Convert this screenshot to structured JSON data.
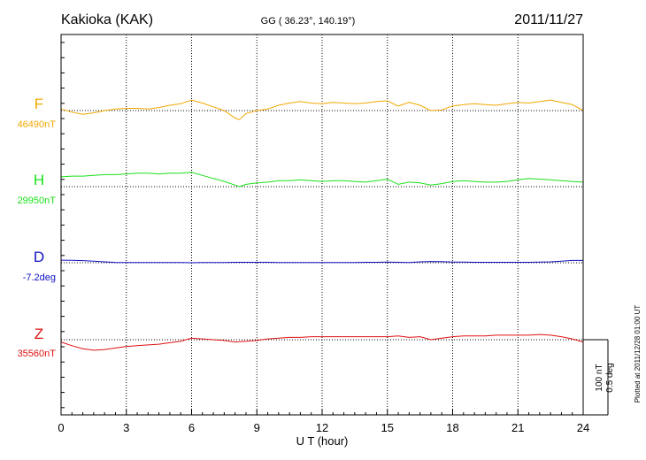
{
  "header": {
    "station": "Kakioka (KAK)",
    "coords": "GG ( 36.23°, 140.19°)",
    "date": "2011/11/27"
  },
  "footer_note": "Plotted at 2011/12/28 01:00 UT",
  "scale_bar": {
    "label1": "100 nT",
    "label2": "0.5 deg"
  },
  "colors": {
    "F": "#f0a800",
    "H": "#18e018",
    "D": "#1010c0",
    "Z": "#e01010",
    "axis": "#000000"
  },
  "chart_data": {
    "type": "line",
    "xlabel": "U T (hour)",
    "xlim": [
      0,
      24
    ],
    "xticks": [
      "0",
      "3",
      "6",
      "9",
      "12",
      "15",
      "18",
      "21",
      "24"
    ],
    "scale_nT": 100,
    "scale_deg": 0.5,
    "series": [
      {
        "name": "F",
        "baseline_label": "46490nT",
        "baseline": 46490,
        "unit": "nT",
        "color": "#f0a800",
        "x": [
          0,
          0.5,
          1,
          1.5,
          2,
          2.5,
          3,
          3.5,
          4,
          4.5,
          5,
          5.5,
          6,
          6.5,
          7,
          7.5,
          8,
          8.2,
          8.5,
          9,
          9.5,
          10,
          10.5,
          11,
          11.5,
          12,
          12.5,
          13,
          13.5,
          14,
          14.5,
          15,
          15.5,
          16,
          16.5,
          17,
          17.5,
          18,
          18.5,
          19,
          19.5,
          20,
          20.5,
          21,
          21.5,
          22,
          22.5,
          23,
          23.5,
          24
        ],
        "y": [
          46492,
          46488,
          46485,
          46487,
          46490,
          46492,
          46493,
          46493,
          46492,
          46494,
          46497,
          46499,
          46504,
          46500,
          46495,
          46490,
          46480,
          46478,
          46486,
          46490,
          46492,
          46497,
          46500,
          46502,
          46500,
          46499,
          46501,
          46500,
          46499,
          46500,
          46502,
          46503,
          46496,
          46501,
          46497,
          46490,
          46491,
          46496,
          46498,
          46499,
          46498,
          46497,
          46499,
          46501,
          46500,
          46502,
          46504,
          46501,
          46498,
          46490
        ]
      },
      {
        "name": "H",
        "baseline_label": "29950nT",
        "baseline": 29950,
        "unit": "nT",
        "color": "#18e018",
        "x": [
          0,
          0.5,
          1,
          1.5,
          2,
          2.5,
          3,
          3.5,
          4,
          4.5,
          5,
          5.5,
          6,
          6.5,
          7,
          7.5,
          8,
          8.2,
          8.5,
          9,
          9.5,
          10,
          10.5,
          11,
          11.5,
          12,
          12.5,
          13,
          13.5,
          14,
          14.5,
          15,
          15.5,
          16,
          16.5,
          17,
          17.5,
          18,
          18.5,
          19,
          19.5,
          20,
          20.5,
          21,
          21.5,
          22,
          22.5,
          23,
          23.5,
          24
        ],
        "y": [
          29963,
          29964,
          29964,
          29965,
          29966,
          29966,
          29967,
          29968,
          29968,
          29967,
          29968,
          29968,
          29969,
          29965,
          29961,
          29957,
          29952,
          29950,
          29953,
          29955,
          29956,
          29958,
          29958,
          29959,
          29958,
          29957,
          29958,
          29958,
          29957,
          29956,
          29958,
          29960,
          29953,
          29956,
          29955,
          29952,
          29954,
          29957,
          29958,
          29957,
          29956,
          29956,
          29957,
          29959,
          29961,
          29960,
          29959,
          29958,
          29957,
          29956
        ]
      },
      {
        "name": "D",
        "baseline_label": "-7.2deg",
        "baseline": -7.2,
        "unit": "deg",
        "color": "#1010c0",
        "x": [
          0,
          0.5,
          1,
          1.5,
          2,
          2.5,
          3,
          3.5,
          4,
          4.5,
          5,
          5.5,
          6,
          6.5,
          7,
          7.5,
          8,
          8.5,
          9,
          9.5,
          10,
          10.5,
          11,
          11.5,
          12,
          12.5,
          13,
          13.5,
          14,
          14.5,
          15,
          15.5,
          16,
          16.5,
          17,
          17.5,
          18,
          18.5,
          19,
          19.5,
          20,
          20.5,
          21,
          21.5,
          22,
          22.5,
          23,
          23.5,
          24
        ],
        "y": [
          -7.183,
          -7.184,
          -7.186,
          -7.19,
          -7.194,
          -7.198,
          -7.199,
          -7.199,
          -7.199,
          -7.198,
          -7.198,
          -7.199,
          -7.2,
          -7.199,
          -7.198,
          -7.198,
          -7.197,
          -7.197,
          -7.197,
          -7.197,
          -7.198,
          -7.198,
          -7.198,
          -7.198,
          -7.198,
          -7.198,
          -7.198,
          -7.198,
          -7.197,
          -7.197,
          -7.196,
          -7.197,
          -7.198,
          -7.194,
          -7.192,
          -7.193,
          -7.195,
          -7.196,
          -7.197,
          -7.197,
          -7.197,
          -7.197,
          -7.197,
          -7.197,
          -7.196,
          -7.194,
          -7.19,
          -7.185,
          -7.185
        ]
      },
      {
        "name": "Z",
        "baseline_label": "35560nT",
        "baseline": 35560,
        "unit": "nT",
        "color": "#e01010",
        "x": [
          0,
          0.5,
          1,
          1.5,
          2,
          2.5,
          3,
          3.5,
          4,
          4.5,
          5,
          5.5,
          6,
          6.5,
          7,
          7.5,
          8,
          8.5,
          9,
          9.5,
          10,
          10.5,
          11,
          11.5,
          12,
          12.5,
          13,
          13.5,
          14,
          14.5,
          15,
          15.5,
          16,
          16.5,
          17,
          17.5,
          18,
          18.5,
          19,
          19.5,
          20,
          20.5,
          21,
          21.5,
          22,
          22.5,
          23,
          23.5,
          24
        ],
        "y": [
          35557,
          35552,
          35548,
          35546,
          35547,
          35549,
          35551,
          35552,
          35553,
          35554,
          35556,
          35558,
          35562,
          35561,
          35560,
          35559,
          35557,
          35558,
          35559,
          35561,
          35562,
          35563,
          35563,
          35564,
          35564,
          35564,
          35564,
          35564,
          35564,
          35564,
          35564,
          35565,
          35563,
          35564,
          35560,
          35562,
          35564,
          35565,
          35565,
          35565,
          35566,
          35566,
          35566,
          35566,
          35567,
          35566,
          35564,
          35561,
          35557
        ]
      }
    ]
  }
}
